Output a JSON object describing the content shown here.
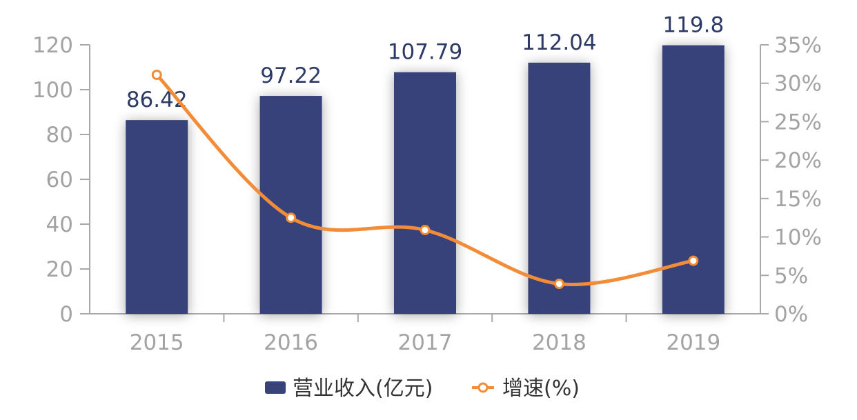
{
  "chart_data": {
    "type": "bar",
    "categories": [
      "2015",
      "2016",
      "2017",
      "2018",
      "2019"
    ],
    "series": [
      {
        "name": "营业收入(亿元)",
        "type": "bar",
        "axis": "left",
        "values": [
          86.42,
          97.22,
          107.79,
          112.04,
          119.8
        ],
        "labels": [
          "86.42",
          "97.22",
          "107.79",
          "112.04",
          "119.8"
        ],
        "color": "#38437a"
      },
      {
        "name": "增速(%)",
        "type": "line",
        "axis": "right",
        "values": [
          31.1,
          12.5,
          10.9,
          3.9,
          6.9
        ],
        "color": "#f28c38"
      }
    ],
    "y_left": {
      "range": [
        0,
        120
      ],
      "ticks": [
        "0",
        "20",
        "40",
        "60",
        "80",
        "100",
        "120"
      ]
    },
    "y_right": {
      "range": [
        0,
        35
      ],
      "ticks": [
        "0%",
        "5%",
        "10%",
        "15%",
        "20%",
        "25%",
        "30%",
        "35%"
      ]
    },
    "grid": false,
    "legend": "bottom-center",
    "title": "",
    "xlabel": "",
    "ylabel": ""
  }
}
